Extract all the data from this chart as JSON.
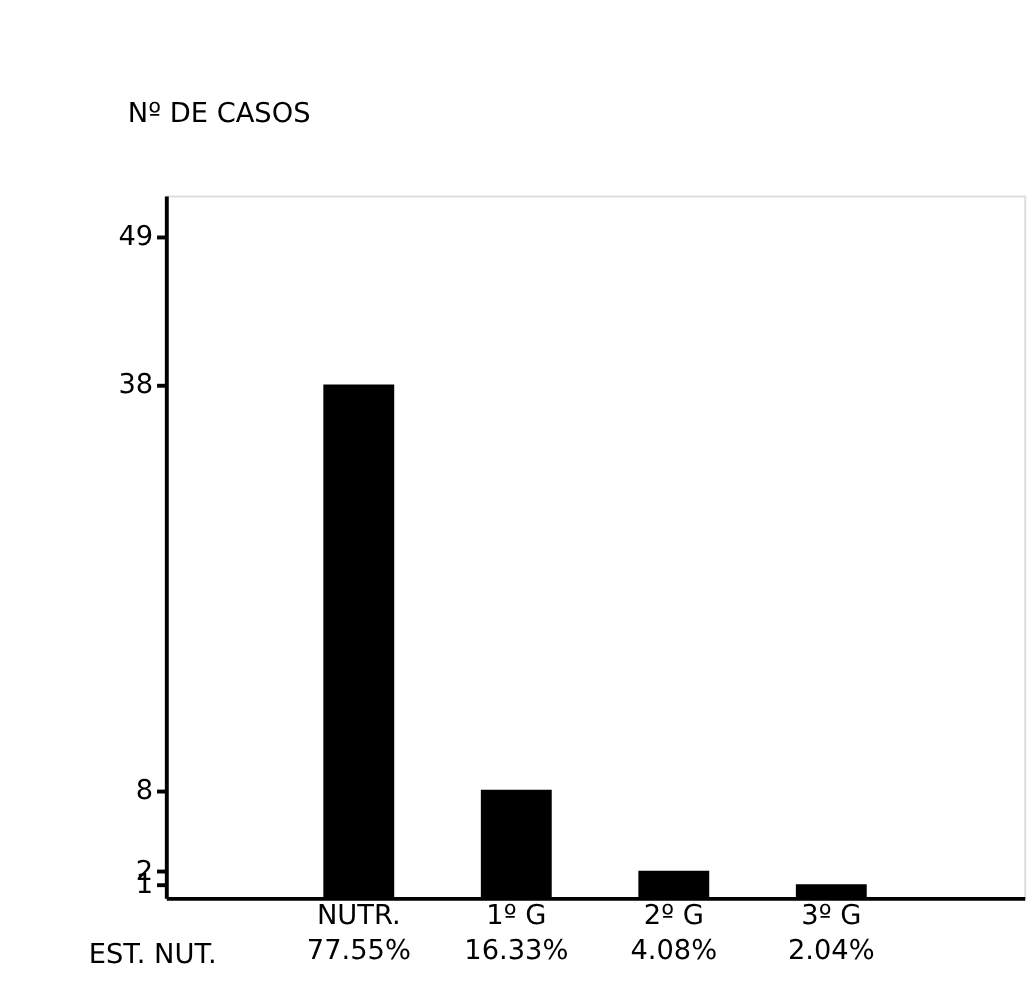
{
  "chart_data": {
    "type": "bar",
    "xlabel": "EST. NUT.",
    "ylabel": "Nº DE CASOS",
    "categories": [
      "NUTR.\n77.55%",
      "1º G\n16.33%",
      "2º G\n4.08%",
      "3º G\n2.04%"
    ],
    "values": [
      38,
      8,
      2,
      1
    ],
    "color": "#000000",
    "ylim": [
      0,
      52
    ],
    "yticks": [
      1,
      2,
      8,
      38,
      49
    ],
    "grid": false
  }
}
